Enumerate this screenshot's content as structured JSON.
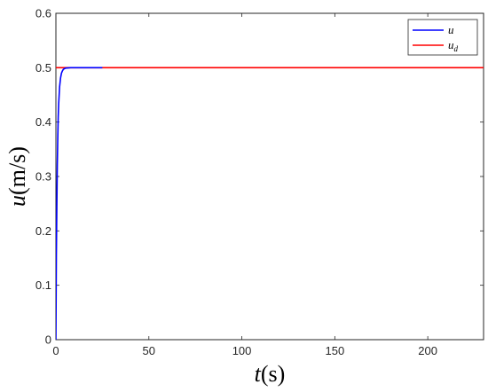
{
  "chart_data": {
    "type": "line",
    "xlim": [
      0,
      230
    ],
    "ylim": [
      0,
      0.6
    ],
    "x_ticks": [
      0,
      50,
      100,
      150,
      200
    ],
    "y_ticks": [
      0,
      0.1,
      0.2,
      0.3,
      0.4,
      0.5,
      0.6
    ],
    "x_tick_labels": [
      "0",
      "50",
      "100",
      "150",
      "200"
    ],
    "y_tick_labels": [
      "0",
      "0.1",
      "0.2",
      "0.3",
      "0.4",
      "0.5",
      "0.6"
    ],
    "xlabel": {
      "var": "t",
      "unit": "(s)"
    },
    "ylabel": {
      "var": "u",
      "unit": "(m/s)"
    },
    "grid": false,
    "legend_position": "top-right",
    "series": [
      {
        "name": "u",
        "color": "#0000ff",
        "x": [
          0,
          0.25,
          0.5,
          0.75,
          1.0,
          1.25,
          1.5,
          2.0,
          2.5,
          3.0,
          3.5,
          4.0,
          5.0,
          6.0,
          8.0,
          10.0,
          15.0,
          20.0,
          25.0
        ],
        "y": [
          0,
          0.155,
          0.243,
          0.321,
          0.368,
          0.41,
          0.434,
          0.465,
          0.481,
          0.49,
          0.494,
          0.497,
          0.499,
          0.4995,
          0.5,
          0.5,
          0.5,
          0.5,
          0.5
        ]
      },
      {
        "name": "u_d",
        "name_main": "u",
        "name_sub": "d",
        "color": "#ff0000",
        "x": [
          0,
          230
        ],
        "y": [
          0.5,
          0.5
        ]
      }
    ]
  }
}
